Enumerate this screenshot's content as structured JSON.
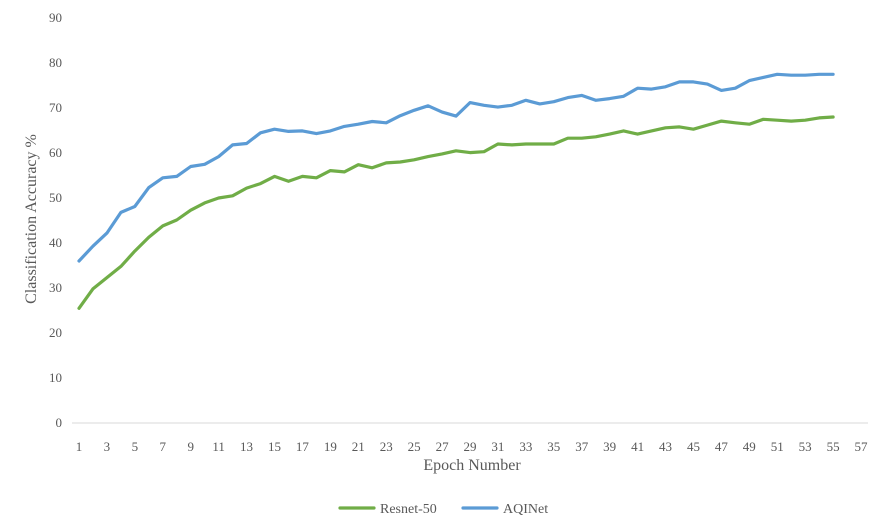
{
  "chart_data": {
    "type": "line",
    "xlabel": "Epoch Number",
    "ylabel": "Classification Accuracy %",
    "ylim": [
      0,
      90
    ],
    "yticks": [
      0,
      10,
      20,
      30,
      40,
      50,
      60,
      70,
      80,
      90
    ],
    "xlim": [
      1,
      57
    ],
    "xticks": [
      1,
      3,
      5,
      7,
      9,
      11,
      13,
      15,
      17,
      19,
      21,
      23,
      25,
      27,
      29,
      31,
      33,
      35,
      37,
      39,
      41,
      43,
      45,
      47,
      49,
      51,
      53,
      55,
      57
    ],
    "grid": false,
    "legend": "bottom",
    "x": [
      1,
      2,
      3,
      4,
      5,
      6,
      7,
      8,
      9,
      10,
      11,
      12,
      13,
      14,
      15,
      16,
      17,
      18,
      19,
      20,
      21,
      22,
      23,
      24,
      25,
      26,
      27,
      28,
      29,
      30,
      31,
      32,
      33,
      34,
      35,
      36,
      37,
      38,
      39,
      40,
      41,
      42,
      43,
      44,
      45,
      46,
      47,
      48,
      49,
      50,
      51,
      52,
      53,
      54,
      55
    ],
    "series": [
      {
        "name": "Resnet-50",
        "color": "#70ad47",
        "values": [
          25.5,
          29.8,
          32.3,
          34.8,
          38.2,
          41.3,
          43.8,
          45.1,
          47.3,
          48.9,
          50.0,
          50.5,
          52.2,
          53.2,
          54.8,
          53.7,
          54.8,
          54.5,
          56.1,
          55.8,
          57.4,
          56.7,
          57.8,
          58.0,
          58.5,
          59.2,
          59.8,
          60.5,
          60.1,
          60.3,
          62.0,
          61.8,
          62.0,
          62.0,
          62.0,
          63.3,
          63.3,
          63.6,
          64.2,
          64.9,
          64.2,
          64.9,
          65.6,
          65.8,
          65.3,
          66.2,
          67.1,
          66.7,
          66.4,
          67.5,
          67.3,
          67.1,
          67.3,
          67.8,
          68.0
        ]
      },
      {
        "name": "AQINet",
        "color": "#5b9bd5",
        "values": [
          36.0,
          39.3,
          42.2,
          46.8,
          48.1,
          52.3,
          54.5,
          54.8,
          57.0,
          57.5,
          59.2,
          61.8,
          62.1,
          64.5,
          65.3,
          64.8,
          64.9,
          64.3,
          64.9,
          65.9,
          66.4,
          67.0,
          66.7,
          68.3,
          69.5,
          70.5,
          69.1,
          68.2,
          71.2,
          70.6,
          70.2,
          70.6,
          71.7,
          70.9,
          71.4,
          72.3,
          72.8,
          71.7,
          72.1,
          72.6,
          74.4,
          74.2,
          74.7,
          75.8,
          75.8,
          75.3,
          73.9,
          74.4,
          76.1,
          76.8,
          77.5,
          77.3,
          77.3,
          77.5,
          77.5
        ]
      }
    ]
  }
}
